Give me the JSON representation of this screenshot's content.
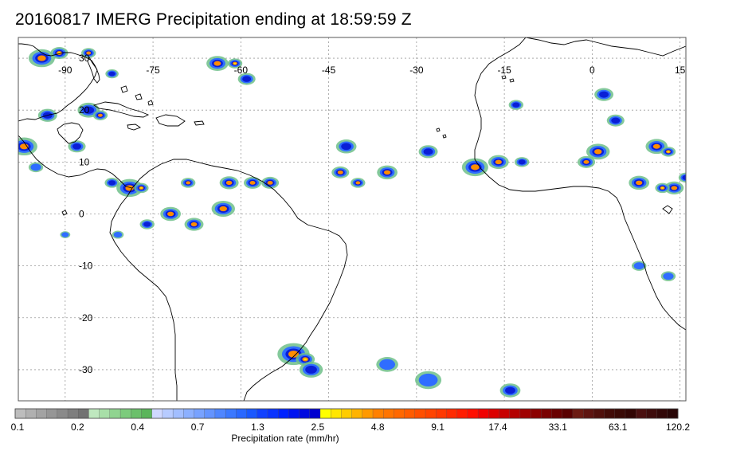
{
  "title": "20160817 IMERG Precipitation ending at 18:59:59 Z",
  "map": {
    "lon_range": [
      -98,
      16
    ],
    "lat_range": [
      -36,
      34
    ],
    "lon_ticks": [
      {
        "value": -90,
        "label": "-90"
      },
      {
        "value": -75,
        "label": "-75"
      },
      {
        "value": -60,
        "label": "-60"
      },
      {
        "value": -45,
        "label": "-45"
      },
      {
        "value": -30,
        "label": "-30"
      },
      {
        "value": -15,
        "label": "-15"
      },
      {
        "value": 0,
        "label": "0"
      },
      {
        "value": 15,
        "label": "15"
      }
    ],
    "lat_ticks": [
      {
        "value": 30,
        "label": "30"
      },
      {
        "value": 20,
        "label": "20"
      },
      {
        "value": 10,
        "label": "10"
      },
      {
        "value": 0,
        "label": "0"
      },
      {
        "value": -10,
        "label": "-10"
      },
      {
        "value": -20,
        "label": "-20"
      },
      {
        "value": -30,
        "label": "-30"
      }
    ],
    "coast_color": "#000000",
    "grid_color": "#9a9a9a",
    "precip_cells": [
      {
        "lon": -94,
        "lat": 30,
        "r": 1.8,
        "level": 3
      },
      {
        "lon": -91,
        "lat": 31,
        "r": 1.2,
        "level": 4
      },
      {
        "lon": -86,
        "lat": 31,
        "r": 1.0,
        "level": 3
      },
      {
        "lon": -82,
        "lat": 27,
        "r": 0.9,
        "level": 2
      },
      {
        "lon": -86,
        "lat": 20,
        "r": 1.5,
        "level": 2
      },
      {
        "lon": -84,
        "lat": 19,
        "r": 1.0,
        "level": 3
      },
      {
        "lon": -93,
        "lat": 19,
        "r": 1.3,
        "level": 2
      },
      {
        "lon": -97,
        "lat": 13,
        "r": 1.8,
        "level": 3
      },
      {
        "lon": -88,
        "lat": 13,
        "r": 1.2,
        "level": 2
      },
      {
        "lon": -95,
        "lat": 9,
        "r": 1.0,
        "level": 1
      },
      {
        "lon": -79,
        "lat": 5,
        "r": 1.8,
        "level": 3
      },
      {
        "lon": -77,
        "lat": 5,
        "r": 1.0,
        "level": 4
      },
      {
        "lon": -82,
        "lat": 6,
        "r": 1.0,
        "level": 2
      },
      {
        "lon": -64,
        "lat": 29,
        "r": 1.5,
        "level": 3
      },
      {
        "lon": -61,
        "lat": 29,
        "r": 1.0,
        "level": 4
      },
      {
        "lon": -59,
        "lat": 26,
        "r": 1.2,
        "level": 2
      },
      {
        "lon": -69,
        "lat": 6,
        "r": 1.0,
        "level": 3
      },
      {
        "lon": -62,
        "lat": 6,
        "r": 1.3,
        "level": 3
      },
      {
        "lon": -58,
        "lat": 6,
        "r": 1.2,
        "level": 3
      },
      {
        "lon": -55,
        "lat": 6,
        "r": 1.2,
        "level": 3
      },
      {
        "lon": -72,
        "lat": 0,
        "r": 1.4,
        "level": 3
      },
      {
        "lon": -63,
        "lat": 1,
        "r": 1.6,
        "level": 3
      },
      {
        "lon": -68,
        "lat": -2,
        "r": 1.3,
        "level": 3
      },
      {
        "lon": -76,
        "lat": -2,
        "r": 1.0,
        "level": 2
      },
      {
        "lon": -42,
        "lat": 13,
        "r": 1.4,
        "level": 2
      },
      {
        "lon": -43,
        "lat": 8,
        "r": 1.2,
        "level": 3
      },
      {
        "lon": -40,
        "lat": 6,
        "r": 1.0,
        "level": 3
      },
      {
        "lon": -35,
        "lat": 8,
        "r": 1.4,
        "level": 3
      },
      {
        "lon": -28,
        "lat": 12,
        "r": 1.3,
        "level": 2
      },
      {
        "lon": -20,
        "lat": 9,
        "r": 1.8,
        "level": 3
      },
      {
        "lon": -16,
        "lat": 10,
        "r": 1.4,
        "level": 3
      },
      {
        "lon": -12,
        "lat": 10,
        "r": 1.0,
        "level": 2
      },
      {
        "lon": -13,
        "lat": 21,
        "r": 1.0,
        "level": 2
      },
      {
        "lon": 2,
        "lat": 23,
        "r": 1.3,
        "level": 2
      },
      {
        "lon": 4,
        "lat": 18,
        "r": 1.2,
        "level": 2
      },
      {
        "lon": 1,
        "lat": 12,
        "r": 1.6,
        "level": 3
      },
      {
        "lon": -1,
        "lat": 10,
        "r": 1.2,
        "level": 3
      },
      {
        "lon": 11,
        "lat": 13,
        "r": 1.5,
        "level": 3
      },
      {
        "lon": 13,
        "lat": 12,
        "r": 1.0,
        "level": 4
      },
      {
        "lon": 8,
        "lat": 6,
        "r": 1.4,
        "level": 3
      },
      {
        "lon": 14,
        "lat": 5,
        "r": 1.3,
        "level": 3
      },
      {
        "lon": 12,
        "lat": 5,
        "r": 1.0,
        "level": 4
      },
      {
        "lon": 16,
        "lat": 7,
        "r": 1.0,
        "level": 2
      },
      {
        "lon": -51,
        "lat": -27,
        "r": 2.2,
        "level": 3
      },
      {
        "lon": -49,
        "lat": -28,
        "r": 1.3,
        "level": 4
      },
      {
        "lon": -48,
        "lat": -30,
        "r": 1.6,
        "level": 2
      },
      {
        "lon": -35,
        "lat": -29,
        "r": 1.5,
        "level": 1
      },
      {
        "lon": -28,
        "lat": -32,
        "r": 1.8,
        "level": 1
      },
      {
        "lon": -14,
        "lat": -34,
        "r": 1.4,
        "level": 2
      },
      {
        "lon": 8,
        "lat": -10,
        "r": 1.0,
        "level": 1
      },
      {
        "lon": 13,
        "lat": -12,
        "r": 1.0,
        "level": 1
      },
      {
        "lon": -81,
        "lat": -4,
        "r": 0.8,
        "level": 1
      },
      {
        "lon": -90,
        "lat": -4,
        "r": 0.7,
        "level": 1
      }
    ]
  },
  "colorbar": {
    "colors": [
      "#bdbdbd",
      "#b0b0b0",
      "#a3a3a3",
      "#969696",
      "#8a8a8a",
      "#7e7e7e",
      "#727272",
      "#bfe8bf",
      "#a8dfa8",
      "#90d490",
      "#7ccb7c",
      "#6bc06b",
      "#5bb55b",
      "#cfd8ff",
      "#b7cbff",
      "#a2beff",
      "#8cb0ff",
      "#78a2ff",
      "#6494ff",
      "#4f86ff",
      "#3b78ff",
      "#2a68ff",
      "#1a58ff",
      "#1141ff",
      "#0a33ff",
      "#0022ff",
      "#0014f0",
      "#000ae0",
      "#0000d0",
      "#ffff00",
      "#ffe600",
      "#ffcc00",
      "#ffb300",
      "#ff9900",
      "#ff8000",
      "#ff7400",
      "#ff6800",
      "#ff5c00",
      "#ff4f00",
      "#ff4400",
      "#ff3800",
      "#ff2a00",
      "#ff1c00",
      "#ff0e00",
      "#f00000",
      "#dc0000",
      "#c80000",
      "#b40000",
      "#a00000",
      "#8c0000",
      "#7a0000",
      "#6a0000",
      "#5a0000",
      "#6c1a12",
      "#5e1410",
      "#50100c",
      "#420c08",
      "#3a0a06",
      "#320604",
      "#4a1010",
      "#3e0c0c",
      "#320808",
      "#280606"
    ],
    "tick_labels": [
      "0.1",
      "0.2",
      "0.4",
      "0.7",
      "1.3",
      "2.5",
      "4.8",
      "9.1",
      "17.4",
      "33.1",
      "63.1",
      "120.2"
    ],
    "axis_label": "Precipitation rate (mm/hr)"
  }
}
